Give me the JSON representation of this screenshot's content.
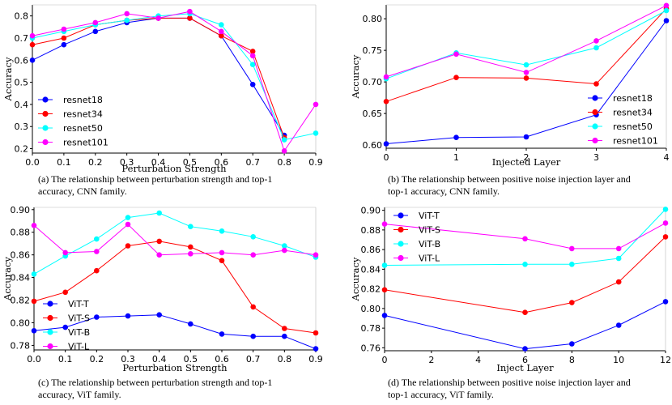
{
  "chart_data": [
    {
      "type": "line",
      "id": "a",
      "xlabel": "Perturbation Strength",
      "ylabel": "Accuracy",
      "x": [
        0.0,
        0.1,
        0.2,
        0.3,
        0.4,
        0.5,
        0.6,
        0.7,
        0.8,
        0.9
      ],
      "xticks": [
        "0.0",
        "0.1",
        "0.2",
        "0.3",
        "0.4",
        "0.5",
        "0.6",
        "0.7",
        "0.8",
        "0.9"
      ],
      "xlim": [
        0,
        0.9
      ],
      "yticks": [
        "0.2",
        "0.3",
        "0.4",
        "0.5",
        "0.6",
        "0.7",
        "0.8"
      ],
      "ylim": [
        0.18,
        0.85
      ],
      "legend_position": "lower-left",
      "caption": [
        "(a) The relationship between perturbation strength and top-1",
        "accuracy, CNN family."
      ],
      "series": [
        {
          "name": "resnet18",
          "color": "#0000ff",
          "values": [
            0.6,
            0.67,
            0.73,
            0.77,
            0.79,
            0.79,
            0.71,
            0.49,
            0.26,
            null
          ]
        },
        {
          "name": "resnet34",
          "color": "#ff0000",
          "values": [
            0.67,
            0.7,
            0.76,
            0.78,
            0.79,
            0.79,
            0.71,
            0.64,
            0.25,
            null
          ]
        },
        {
          "name": "resnet50",
          "color": "#00ffff",
          "values": [
            0.7,
            0.73,
            0.76,
            0.78,
            0.8,
            0.81,
            0.76,
            0.58,
            0.24,
            0.27
          ]
        },
        {
          "name": "resnet101",
          "color": "#ff00ff",
          "values": [
            0.71,
            0.74,
            0.77,
            0.81,
            0.79,
            0.82,
            0.73,
            0.62,
            0.19,
            0.4
          ]
        }
      ]
    },
    {
      "type": "line",
      "id": "b",
      "xlabel": "Injected Layer",
      "ylabel": "Accuracy",
      "x": [
        0,
        1,
        2,
        3,
        4
      ],
      "xticks": [
        "0",
        "1",
        "2",
        "3",
        "4"
      ],
      "xlim": [
        0,
        4
      ],
      "yticks": [
        "0.60",
        "0.65",
        "0.70",
        "0.75",
        "0.80"
      ],
      "ylim": [
        0.595,
        0.822
      ],
      "legend_position": "lower-right",
      "caption": [
        "(b) The relationship between positive noise injection layer and",
        "top-1 accuracy, CNN family."
      ],
      "series": [
        {
          "name": "resnet18",
          "color": "#0000ff",
          "values": [
            0.602,
            0.612,
            0.613,
            0.648,
            0.797
          ]
        },
        {
          "name": "resnet34",
          "color": "#ff0000",
          "values": [
            0.669,
            0.707,
            0.706,
            0.697,
            0.816
          ]
        },
        {
          "name": "resnet50",
          "color": "#00ffff",
          "values": [
            0.705,
            0.746,
            0.727,
            0.754,
            0.813
          ]
        },
        {
          "name": "resnet101",
          "color": "#ff00ff",
          "values": [
            0.708,
            0.744,
            0.715,
            0.765,
            0.821
          ]
        }
      ]
    },
    {
      "type": "line",
      "id": "c",
      "xlabel": "Perturbation Strength",
      "ylabel": "Accuracy",
      "x": [
        0.0,
        0.1,
        0.2,
        0.3,
        0.4,
        0.5,
        0.6,
        0.7,
        0.8,
        0.9
      ],
      "xticks": [
        "0.0",
        "0.1",
        "0.2",
        "0.3",
        "0.4",
        "0.5",
        "0.6",
        "0.7",
        "0.8",
        "0.9"
      ],
      "xlim": [
        0,
        0.9
      ],
      "yticks": [
        "0.78",
        "0.80",
        "0.82",
        "0.84",
        "0.86",
        "0.88",
        "0.90"
      ],
      "ylim": [
        0.776,
        0.902
      ],
      "legend_position": "lower-left",
      "caption": [
        "(c) The relationship between perturbation strength and top-1",
        "accuracy, ViT family."
      ],
      "series": [
        {
          "name": "ViT-T",
          "color": "#0000ff",
          "values": [
            0.793,
            0.796,
            0.805,
            0.806,
            0.807,
            0.799,
            0.79,
            0.788,
            0.788,
            0.777
          ]
        },
        {
          "name": "ViT-S",
          "color": "#ff0000",
          "values": [
            0.819,
            0.827,
            0.846,
            0.868,
            0.872,
            0.867,
            0.855,
            0.814,
            0.795,
            0.791
          ]
        },
        {
          "name": "ViT-B",
          "color": "#00ffff",
          "values": [
            0.843,
            0.859,
            0.874,
            0.893,
            0.897,
            0.885,
            0.881,
            0.876,
            0.868,
            0.858
          ]
        },
        {
          "name": "ViT-L",
          "color": "#ff00ff",
          "values": [
            0.886,
            0.862,
            0.863,
            0.887,
            0.86,
            0.861,
            0.862,
            0.86,
            0.864,
            0.86
          ]
        }
      ]
    },
    {
      "type": "line",
      "id": "d",
      "xlabel": "Inject Layer",
      "ylabel": "Accuracy",
      "x": [
        0,
        6,
        8,
        10,
        12
      ],
      "xticks": [
        "0",
        "2",
        "4",
        "6",
        "8",
        "10",
        "12"
      ],
      "xtick_values": [
        0,
        2,
        4,
        6,
        8,
        10,
        12
      ],
      "xlim": [
        0,
        12
      ],
      "yticks": [
        "0.76",
        "0.78",
        "0.80",
        "0.82",
        "0.84",
        "0.86",
        "0.88",
        "0.90"
      ],
      "ylim": [
        0.757,
        0.903
      ],
      "legend_position": "upper-left",
      "caption": [
        "(d) The relationship between positive noise injection layer and",
        "top-1 accuracy, ViT family."
      ],
      "series": [
        {
          "name": "ViT-T",
          "color": "#0000ff",
          "values": [
            0.793,
            0.759,
            0.764,
            0.783,
            0.807
          ]
        },
        {
          "name": "ViT-S",
          "color": "#ff0000",
          "values": [
            0.819,
            0.796,
            0.806,
            0.827,
            0.873
          ]
        },
        {
          "name": "ViT-B",
          "color": "#00ffff",
          "values": [
            0.844,
            0.845,
            0.845,
            0.851,
            0.901
          ]
        },
        {
          "name": "ViT-L",
          "color": "#ff00ff",
          "values": [
            0.886,
            0.871,
            0.861,
            0.861,
            0.887
          ]
        }
      ]
    }
  ]
}
